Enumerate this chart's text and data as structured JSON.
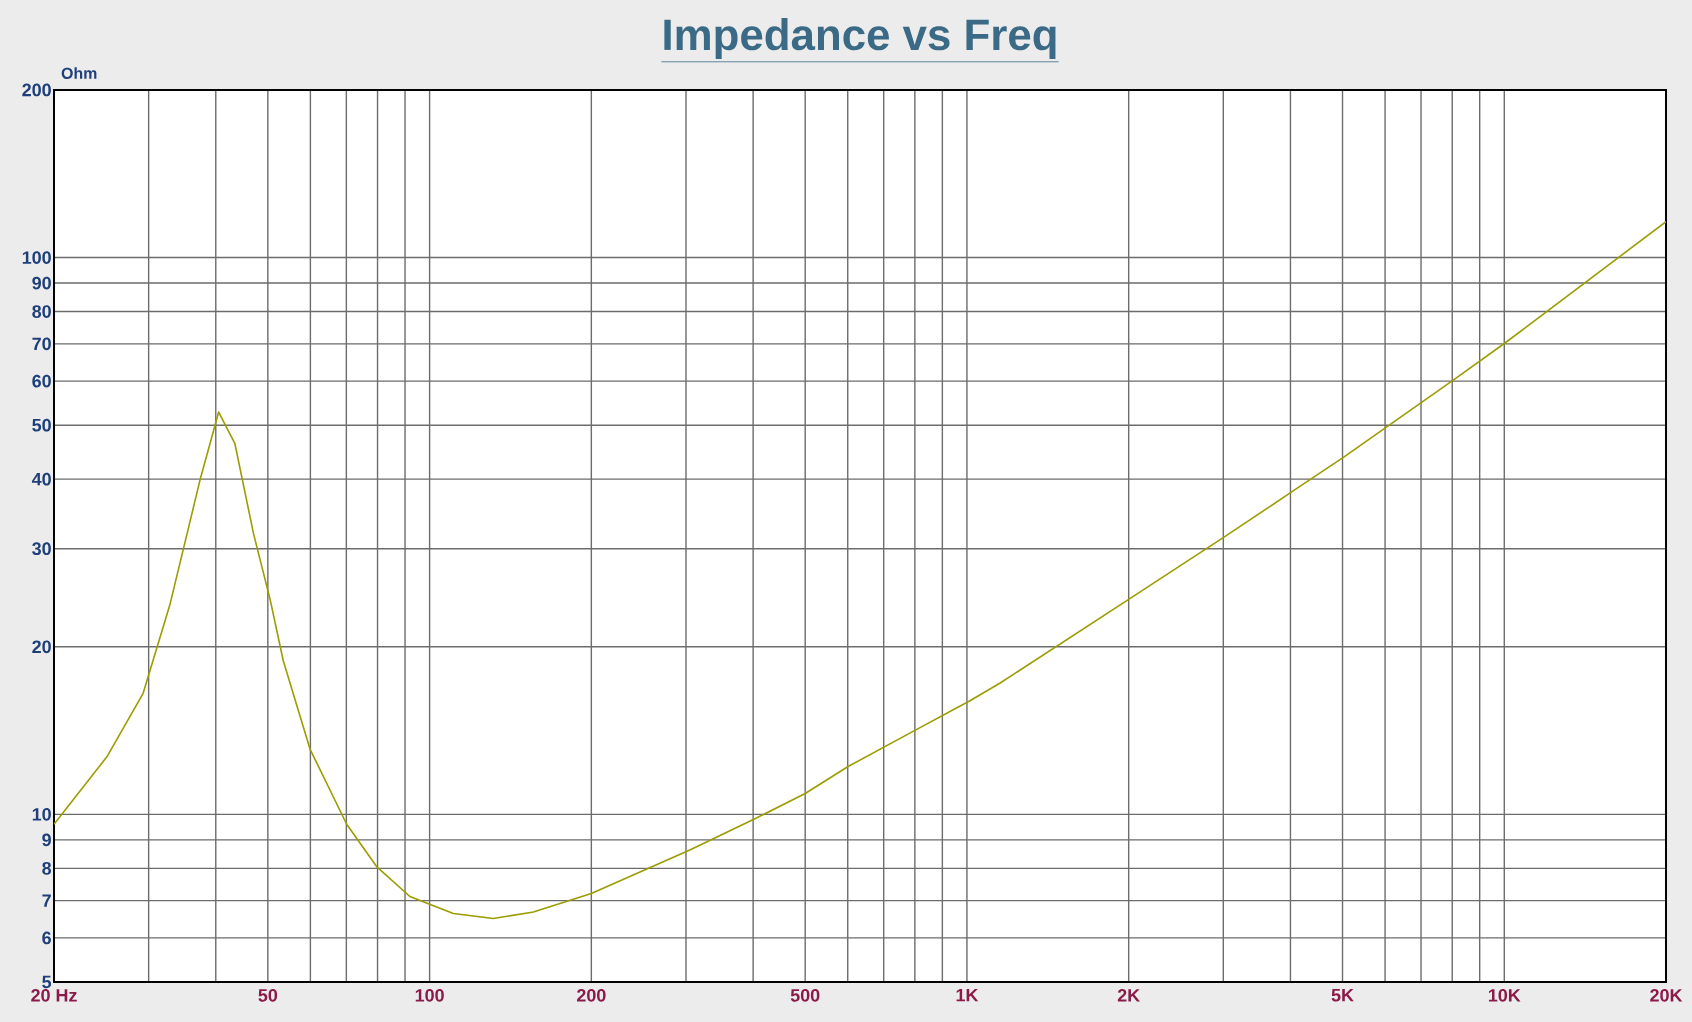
{
  "chart_data": {
    "type": "line",
    "title": "Impedance vs Freq",
    "ylabel": "Ohm",
    "x": [
      20,
      25.1,
      29.3,
      32.9,
      37.4,
      40.5,
      43.4,
      47,
      50.5,
      53.4,
      59.9,
      70.1,
      79.7,
      91.9,
      110.7,
      131.4,
      156,
      200,
      305,
      404,
      500,
      602,
      805,
      1013,
      1151,
      2023,
      3014,
      4014,
      5042,
      8108,
      10000,
      20000
    ],
    "series": [
      {
        "color": "#9c9c00",
        "values": [
          9.6,
          12.7,
          16.5,
          23.9,
          39.9,
          52.8,
          46.4,
          32.0,
          24.3,
          18.9,
          13.1,
          9.6,
          8.06,
          7.12,
          6.64,
          6.5,
          6.68,
          7.21,
          8.63,
          9.83,
          10.9,
          12.2,
          14.2,
          16.0,
          17.2,
          24.5,
          31.5,
          37.9,
          43.9,
          60.6,
          70.1,
          116
        ]
      }
    ],
    "log": "xy",
    "grid": true,
    "xlim": [
      20,
      20000
    ],
    "ylim": [
      5,
      200
    ],
    "xticks": [
      {
        "value": 20,
        "label": "20 Hz"
      },
      {
        "value": 30,
        "label": null
      },
      {
        "value": 40,
        "label": null
      },
      50,
      {
        "value": 60,
        "label": null
      },
      {
        "value": 70,
        "label": null
      },
      {
        "value": 80,
        "label": null
      },
      {
        "value": 90,
        "label": null
      },
      100,
      200,
      {
        "value": 300,
        "label": null
      },
      {
        "value": 400,
        "label": null
      },
      500,
      {
        "value": 600,
        "label": null
      },
      {
        "value": 700,
        "label": null
      },
      {
        "value": 800,
        "label": null
      },
      {
        "value": 900,
        "label": null
      },
      {
        "value": 1000,
        "label": "1K"
      },
      {
        "value": 2000,
        "label": "2K"
      },
      {
        "value": 3000,
        "label": null
      },
      {
        "value": 4000,
        "label": null
      },
      {
        "value": 5000,
        "label": "5K"
      },
      {
        "value": 6000,
        "label": null
      },
      {
        "value": 7000,
        "label": null
      },
      {
        "value": 8000,
        "label": null
      },
      {
        "value": 9000,
        "label": null
      },
      {
        "value": 10000,
        "label": "10K"
      },
      {
        "value": 20000,
        "label": "20K"
      }
    ],
    "yticks": [
      5,
      6,
      7,
      8,
      9,
      10,
      20,
      30,
      40,
      50,
      60,
      70,
      80,
      90,
      100,
      200
    ]
  }
}
